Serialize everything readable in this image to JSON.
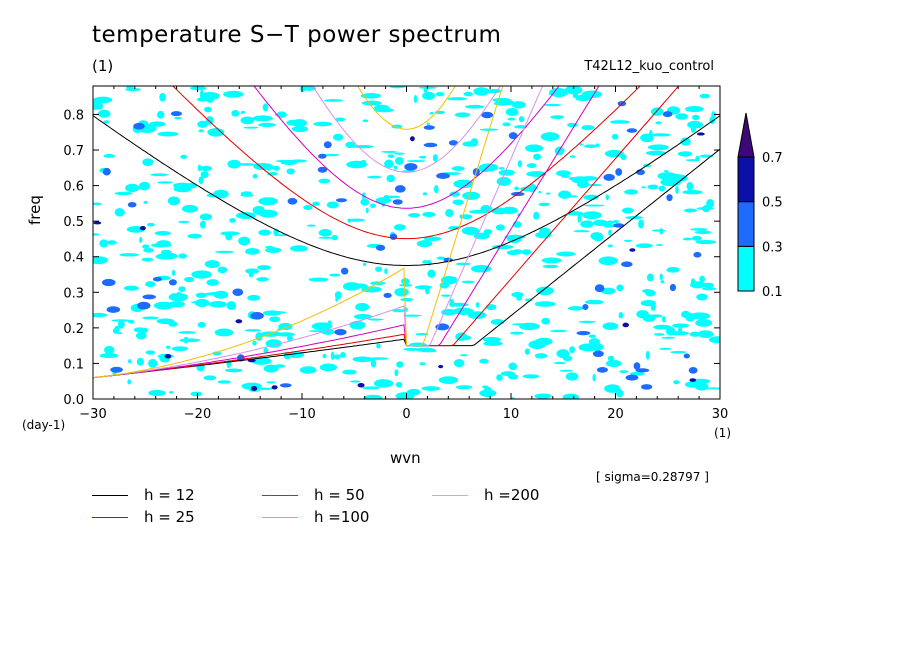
{
  "chart_data": {
    "type": "heatmap",
    "title": "temperature S−T power spectrum",
    "units_label": "(1)",
    "run_name": "T42L12_kuo_control",
    "xlabel": "wvn",
    "ylabel": "freq",
    "x_unit": "(1)",
    "y_unit": "(day-1)",
    "xlim": [
      -30,
      30
    ],
    "ylim": [
      0,
      0.88
    ],
    "x_ticks": [
      "−30",
      "−20",
      "−10",
      "0",
      "10",
      "20",
      "30"
    ],
    "x_tick_values": [
      -30,
      -20,
      -10,
      0,
      10,
      20,
      30
    ],
    "y_ticks": [
      "0.0",
      "0.1",
      "0.2",
      "0.3",
      "0.4",
      "0.5",
      "0.6",
      "0.7",
      "0.8"
    ],
    "y_tick_values": [
      0,
      0.1,
      0.2,
      0.3,
      0.4,
      0.5,
      0.6,
      0.7,
      0.8
    ],
    "colorbar": {
      "levels": [
        "0.1",
        "0.3",
        "0.5",
        "0.7"
      ],
      "colors": [
        "#00ffff",
        "#1e6cff",
        "#0a10a8",
        "#3c0878"
      ]
    },
    "sigma_text": "[ sigma=0.28797 ]",
    "dispersion_curves": [
      {
        "label": "h = 12",
        "h": 12,
        "color": "#000000"
      },
      {
        "label": "h = 25",
        "h": 25,
        "color": "#e00000"
      },
      {
        "label": "h = 50",
        "h": 50,
        "color": "#d000c0"
      },
      {
        "label": "h =100",
        "h": 100,
        "color": "#d890e8"
      },
      {
        "label": "h =200",
        "h": 200,
        "color": "#f0c000"
      }
    ]
  }
}
